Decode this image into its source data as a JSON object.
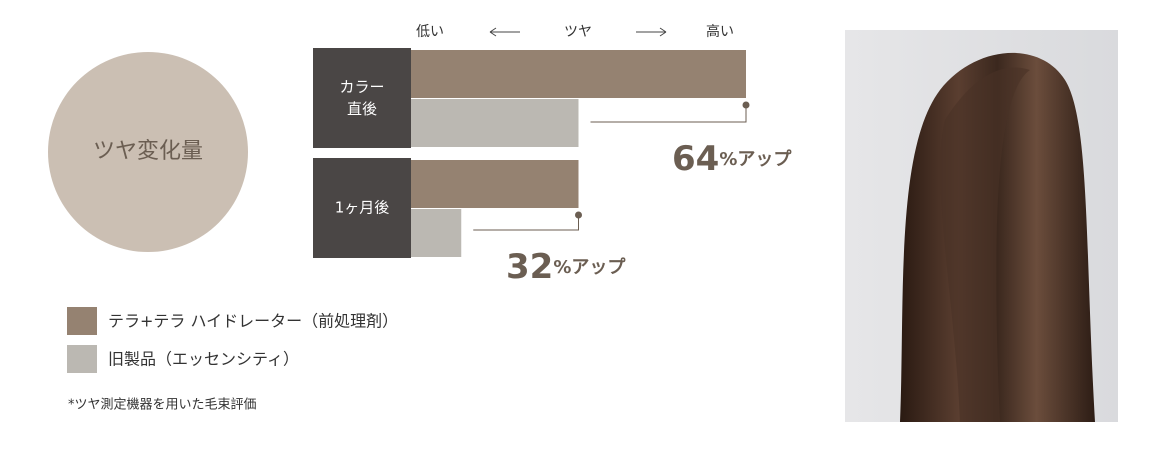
{
  "chart_data": {
    "type": "bar",
    "orientation": "horizontal",
    "badge": "ツヤ変化量",
    "axis_label": {
      "low": "低い",
      "name": "ツヤ",
      "high": "高い"
    },
    "categories": [
      "カラー\n直後",
      "1ヶ月後"
    ],
    "series": [
      {
        "name": "テラ+テラ ハイドレーター（前処理剤）",
        "color": "#958271",
        "values": [
          100,
          50
        ]
      },
      {
        "name": "旧製品（エッセンシティ）",
        "color": "#bbb8b2",
        "values": [
          50,
          15
        ]
      }
    ],
    "annotations": [
      "64%アップ",
      "32%アップ"
    ],
    "xlim": [
      0,
      100
    ],
    "legend": "bottom-left",
    "footnote": "*ツヤ測定機器を用いた毛束評価"
  }
}
